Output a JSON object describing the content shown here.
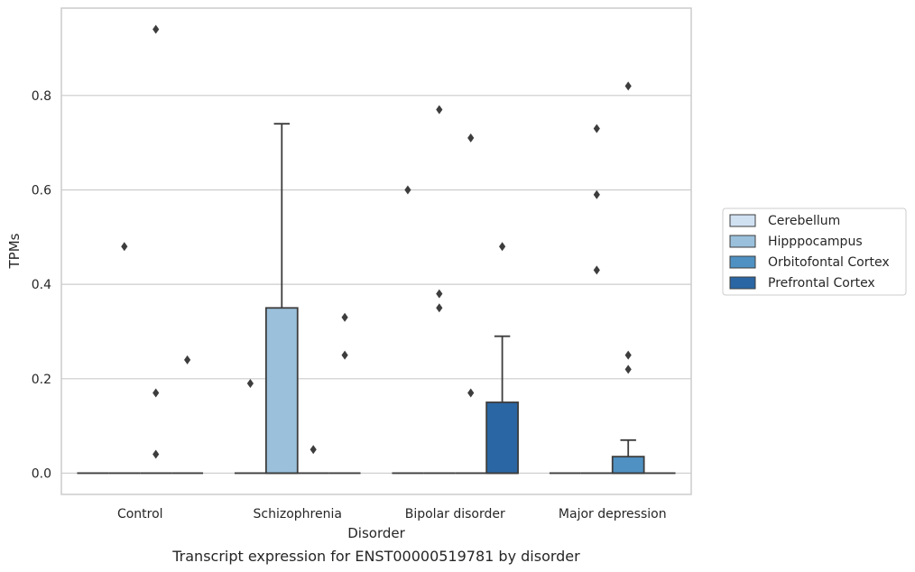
{
  "chart_data": {
    "type": "box",
    "caption": "Transcript expression for ENST00000519781 by disorder",
    "xlabel": "Disorder",
    "ylabel": "TPMs",
    "categories": [
      "Control",
      "Schizophrenia",
      "Bipolar disorder",
      "Major depression"
    ],
    "ylim": [
      -0.045,
      0.985
    ],
    "yticks": [
      0.0,
      0.2,
      0.4,
      0.6,
      0.8
    ],
    "ytick_labels": [
      "0.0",
      "0.2",
      "0.4",
      "0.6",
      "0.8"
    ],
    "grid": "horizontal",
    "legend_position": "right",
    "series": [
      {
        "name": "Cerebellum",
        "color": "#d0e1f2",
        "boxes": [
          {
            "q1": 0,
            "median": 0,
            "q3": 0,
            "whisker_low": 0,
            "whisker_high": 0,
            "outliers": []
          },
          {
            "q1": 0,
            "median": 0,
            "q3": 0,
            "whisker_low": 0,
            "whisker_high": 0,
            "outliers": [
              0.19
            ]
          },
          {
            "q1": 0,
            "median": 0,
            "q3": 0,
            "whisker_low": 0,
            "whisker_high": 0,
            "outliers": [
              0.6
            ]
          },
          {
            "q1": 0,
            "median": 0,
            "q3": 0,
            "whisker_low": 0,
            "whisker_high": 0,
            "outliers": []
          }
        ]
      },
      {
        "name": "Hipppocampus",
        "color": "#9ac0db",
        "boxes": [
          {
            "q1": 0,
            "median": 0,
            "q3": 0,
            "whisker_low": 0,
            "whisker_high": 0,
            "outliers": [
              0.48
            ]
          },
          {
            "q1": 0,
            "median": 0,
            "q3": 0.35,
            "whisker_low": 0,
            "whisker_high": 0.74,
            "outliers": []
          },
          {
            "q1": 0,
            "median": 0,
            "q3": 0,
            "whisker_low": 0,
            "whisker_high": 0,
            "outliers": [
              0.35,
              0.38,
              0.77
            ]
          },
          {
            "q1": 0,
            "median": 0,
            "q3": 0,
            "whisker_low": 0,
            "whisker_high": 0,
            "outliers": [
              0.43,
              0.59,
              0.73
            ]
          }
        ]
      },
      {
        "name": "Orbitofontal Cortex",
        "color": "#4f91c2",
        "boxes": [
          {
            "q1": 0,
            "median": 0,
            "q3": 0,
            "whisker_low": 0,
            "whisker_high": 0,
            "outliers": [
              0.04,
              0.17,
              0.94
            ]
          },
          {
            "q1": 0,
            "median": 0,
            "q3": 0,
            "whisker_low": 0,
            "whisker_high": 0,
            "outliers": [
              0.05
            ]
          },
          {
            "q1": 0,
            "median": 0,
            "q3": 0,
            "whisker_low": 0,
            "whisker_high": 0,
            "outliers": [
              0.17,
              0.71
            ]
          },
          {
            "q1": 0,
            "median": 0,
            "q3": 0.035,
            "whisker_low": 0,
            "whisker_high": 0.07,
            "outliers": [
              0.22,
              0.25,
              0.82
            ]
          }
        ]
      },
      {
        "name": "Prefrontal Cortex",
        "color": "#2a66a3",
        "boxes": [
          {
            "q1": 0,
            "median": 0,
            "q3": 0,
            "whisker_low": 0,
            "whisker_high": 0,
            "outliers": [
              0.24
            ]
          },
          {
            "q1": 0,
            "median": 0,
            "q3": 0,
            "whisker_low": 0,
            "whisker_high": 0,
            "outliers": [
              0.25,
              0.33
            ]
          },
          {
            "q1": 0,
            "median": 0,
            "q3": 0.15,
            "whisker_low": 0,
            "whisker_high": 0.29,
            "outliers": [
              0.48
            ]
          },
          {
            "q1": 0,
            "median": 0,
            "q3": 0,
            "whisker_low": 0,
            "whisker_high": 0,
            "outliers": []
          }
        ]
      }
    ]
  }
}
